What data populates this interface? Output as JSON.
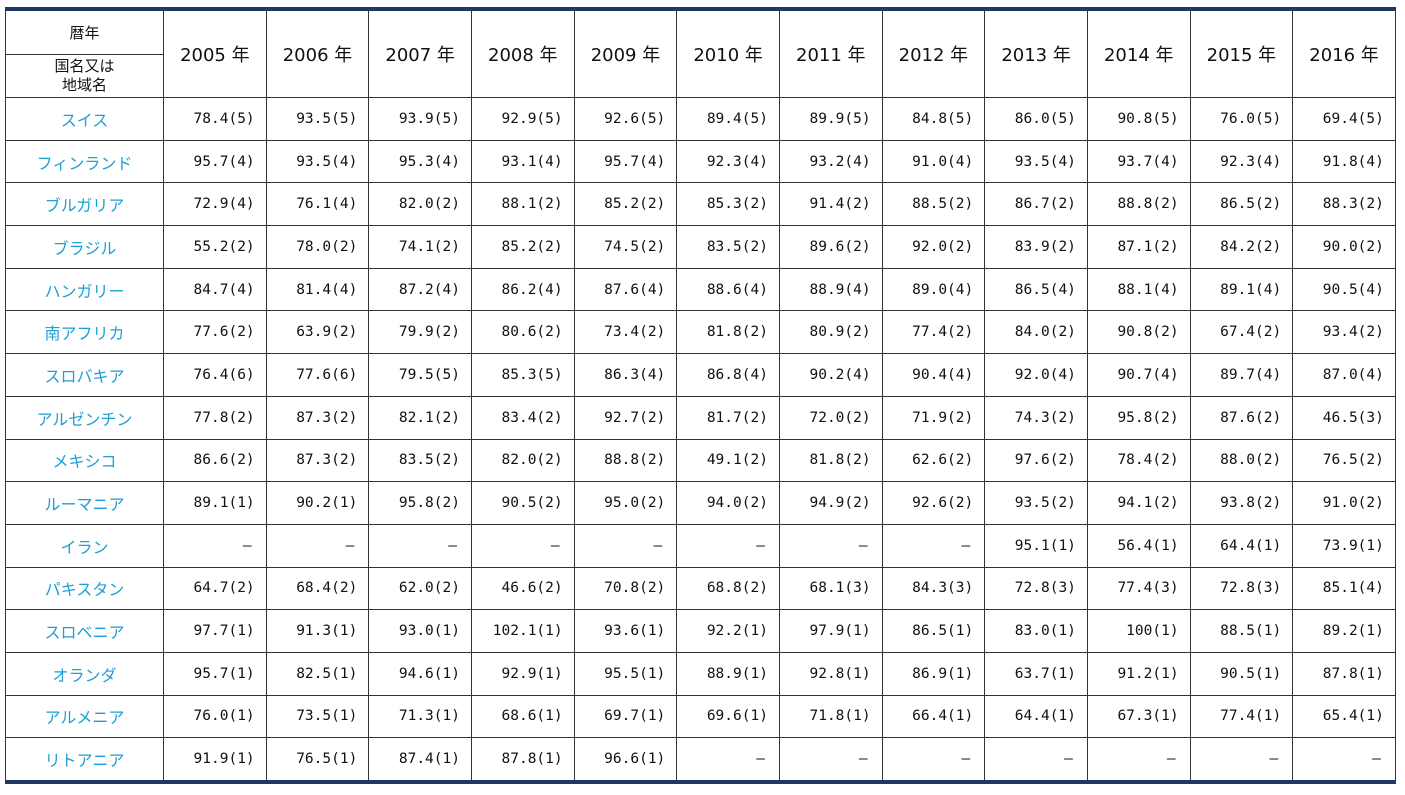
{
  "header": {
    "corner_top": "暦年",
    "corner_bottom_line1": "国名又は",
    "corner_bottom_line2": "地域名",
    "years": [
      "2005 年",
      "2006 年",
      "2007 年",
      "2008 年",
      "2009 年",
      "2010 年",
      "2011 年",
      "2012 年",
      "2013 年",
      "2014 年",
      "2015 年",
      "2016 年"
    ]
  },
  "rows": [
    {
      "country": "スイス",
      "values": [
        "78.4(5)",
        "93.5(5)",
        "93.9(5)",
        "92.9(5)",
        "92.6(5)",
        "89.4(5)",
        "89.9(5)",
        "84.8(5)",
        "86.0(5)",
        "90.8(5)",
        "76.0(5)",
        "69.4(5)"
      ]
    },
    {
      "country": "フィンランド",
      "values": [
        "95.7(4)",
        "93.5(4)",
        "95.3(4)",
        "93.1(4)",
        "95.7(4)",
        "92.3(4)",
        "93.2(4)",
        "91.0(4)",
        "93.5(4)",
        "93.7(4)",
        "92.3(4)",
        "91.8(4)"
      ]
    },
    {
      "country": "ブルガリア",
      "values": [
        "72.9(4)",
        "76.1(4)",
        "82.0(2)",
        "88.1(2)",
        "85.2(2)",
        "85.3(2)",
        "91.4(2)",
        "88.5(2)",
        "86.7(2)",
        "88.8(2)",
        "86.5(2)",
        "88.3(2)"
      ]
    },
    {
      "country": "ブラジル",
      "values": [
        "55.2(2)",
        "78.0(2)",
        "74.1(2)",
        "85.2(2)",
        "74.5(2)",
        "83.5(2)",
        "89.6(2)",
        "92.0(2)",
        "83.9(2)",
        "87.1(2)",
        "84.2(2)",
        "90.0(2)"
      ]
    },
    {
      "country": "ハンガリー",
      "values": [
        "84.7(4)",
        "81.4(4)",
        "87.2(4)",
        "86.2(4)",
        "87.6(4)",
        "88.6(4)",
        "88.9(4)",
        "89.0(4)",
        "86.5(4)",
        "88.1(4)",
        "89.1(4)",
        "90.5(4)"
      ]
    },
    {
      "country": "南アフリカ",
      "values": [
        "77.6(2)",
        "63.9(2)",
        "79.9(2)",
        "80.6(2)",
        "73.4(2)",
        "81.8(2)",
        "80.9(2)",
        "77.4(2)",
        "84.0(2)",
        "90.8(2)",
        "67.4(2)",
        "93.4(2)"
      ]
    },
    {
      "country": "スロバキア",
      "values": [
        "76.4(6)",
        "77.6(6)",
        "79.5(5)",
        "85.3(5)",
        "86.3(4)",
        "86.8(4)",
        "90.2(4)",
        "90.4(4)",
        "92.0(4)",
        "90.7(4)",
        "89.7(4)",
        "87.0(4)"
      ]
    },
    {
      "country": "アルゼンチン",
      "values": [
        "77.8(2)",
        "87.3(2)",
        "82.1(2)",
        "83.4(2)",
        "92.7(2)",
        "81.7(2)",
        "72.0(2)",
        "71.9(2)",
        "74.3(2)",
        "95.8(2)",
        "87.6(2)",
        "46.5(3)"
      ]
    },
    {
      "country": "メキシコ",
      "values": [
        "86.6(2)",
        "87.3(2)",
        "83.5(2)",
        "82.0(2)",
        "88.8(2)",
        "49.1(2)",
        "81.8(2)",
        "62.6(2)",
        "97.6(2)",
        "78.4(2)",
        "88.0(2)",
        "76.5(2)"
      ]
    },
    {
      "country": "ルーマニア",
      "values": [
        "89.1(1)",
        "90.2(1)",
        "95.8(2)",
        "90.5(2)",
        "95.0(2)",
        "94.0(2)",
        "94.9(2)",
        "92.6(2)",
        "93.5(2)",
        "94.1(2)",
        "93.8(2)",
        "91.0(2)"
      ]
    },
    {
      "country": "イラン",
      "values": [
        "—",
        "—",
        "—",
        "—",
        "—",
        "—",
        "—",
        "—",
        "95.1(1)",
        "56.4(1)",
        "64.4(1)",
        "73.9(1)"
      ]
    },
    {
      "country": "パキスタン",
      "values": [
        "64.7(2)",
        "68.4(2)",
        "62.0(2)",
        "46.6(2)",
        "70.8(2)",
        "68.8(2)",
        "68.1(3)",
        "84.3(3)",
        "72.8(3)",
        "77.4(3)",
        "72.8(3)",
        "85.1(4)"
      ]
    },
    {
      "country": "スロベニア",
      "values": [
        "97.7(1)",
        "91.3(1)",
        "93.0(1)",
        "102.1(1)",
        "93.6(1)",
        "92.2(1)",
        "97.9(1)",
        "86.5(1)",
        "83.0(1)",
        "100(1)",
        "88.5(1)",
        "89.2(1)"
      ]
    },
    {
      "country": "オランダ",
      "values": [
        "95.7(1)",
        "82.5(1)",
        "94.6(1)",
        "92.9(1)",
        "95.5(1)",
        "88.9(1)",
        "92.8(1)",
        "86.9(1)",
        "63.7(1)",
        "91.2(1)",
        "90.5(1)",
        "87.8(1)"
      ]
    },
    {
      "country": "アルメニア",
      "values": [
        "76.0(1)",
        "73.5(1)",
        "71.3(1)",
        "68.6(1)",
        "69.7(1)",
        "69.6(1)",
        "71.8(1)",
        "66.4(1)",
        "64.4(1)",
        "67.3(1)",
        "77.4(1)",
        "65.4(1)"
      ]
    },
    {
      "country": "リトアニア",
      "values": [
        "91.9(1)",
        "76.5(1)",
        "87.4(1)",
        "87.8(1)",
        "96.6(1)",
        "—",
        "—",
        "—",
        "—",
        "—",
        "—",
        "—"
      ]
    }
  ]
}
